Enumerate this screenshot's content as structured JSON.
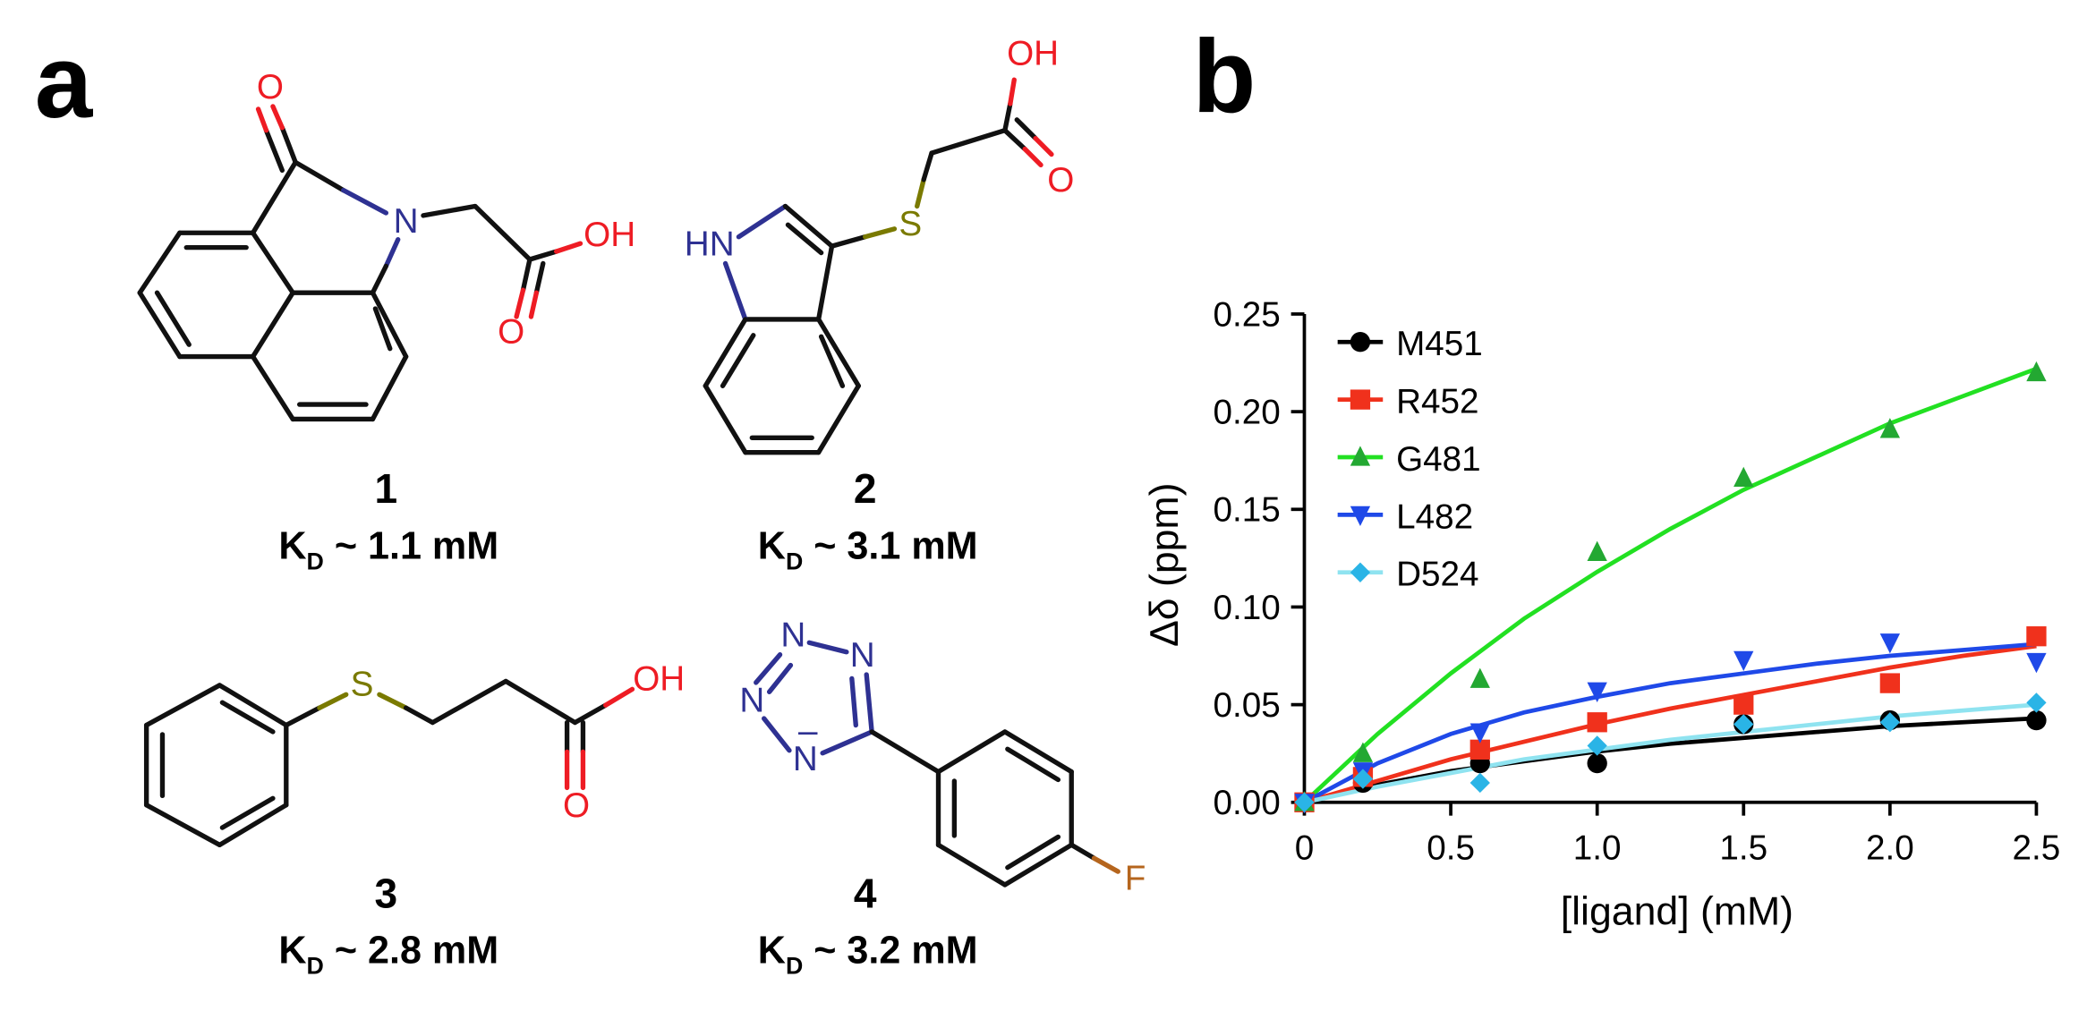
{
  "panel_labels": [
    "a",
    "b"
  ],
  "compounds": [
    {
      "number": "1",
      "kd": {
        "symbol": "K",
        "subscript": "D",
        "text": " ~ 1.1 mM"
      },
      "atoms": [
        {
          "label": "O",
          "color": "#ee1c24"
        },
        {
          "label": "N",
          "color": "#2e3192"
        },
        {
          "label": "OH",
          "color": "#ee1c24"
        },
        {
          "label": "O",
          "color": "#ee1c24"
        }
      ]
    },
    {
      "number": "2",
      "kd": {
        "symbol": "K",
        "subscript": "D",
        "text": " ~ 3.1 mM"
      },
      "atoms": [
        {
          "label": "HN",
          "color": "#2e3192"
        },
        {
          "label": "S",
          "color": "#7a7a00"
        },
        {
          "label": "OH",
          "color": "#ee1c24"
        },
        {
          "label": "O",
          "color": "#ee1c24"
        }
      ]
    },
    {
      "number": "3",
      "kd": {
        "symbol": "K",
        "subscript": "D",
        "text": " ~ 2.8 mM"
      },
      "atoms": [
        {
          "label": "S",
          "color": "#7a7a00"
        },
        {
          "label": "OH",
          "color": "#ee1c24"
        },
        {
          "label": "O",
          "color": "#ee1c24"
        }
      ]
    },
    {
      "number": "4",
      "kd": {
        "symbol": "K",
        "subscript": "D",
        "text": " ~ 3.2 mM"
      },
      "atoms": [
        {
          "label": "N",
          "color": "#2e3192"
        },
        {
          "label": "N",
          "color": "#2e3192"
        },
        {
          "label": "N",
          "color": "#2e3192"
        },
        {
          "label": "N",
          "color": "#2e3192"
        },
        {
          "label": "–",
          "color": "#2e3192"
        },
        {
          "label": "F",
          "color": "#b5651d"
        }
      ]
    }
  ],
  "chart_data": {
    "type": "scatter",
    "x_label": "[ligand] (mM)",
    "y_label": "Δδ (ppm)",
    "xlim": [
      0,
      2.5
    ],
    "ylim": [
      0,
      0.25
    ],
    "xticks": [
      0,
      0.5,
      {
        "value": 1,
        "label": "1.0"
      },
      1.5,
      {
        "value": 2,
        "label": "2.0"
      },
      2.5
    ],
    "yticks": [
      {
        "value": 0,
        "label": "0.00"
      },
      {
        "value": 0.05,
        "label": "0.05"
      },
      {
        "value": 0.1,
        "label": "0.10"
      },
      {
        "value": 0.15,
        "label": "0.15"
      },
      {
        "value": 0.2,
        "label": "0.20"
      },
      {
        "value": 0.25,
        "label": "0.25"
      }
    ],
    "legend": "top-left",
    "x": [
      0,
      0.2,
      0.6,
      1.0,
      1.5,
      2.0,
      2.5
    ],
    "fit_x": [
      0,
      0.25,
      0.5,
      0.75,
      1.0,
      1.25,
      1.5,
      1.75,
      2.0,
      2.25,
      2.5
    ],
    "series": [
      {
        "name": "M451",
        "color": "#000000",
        "fit_color": "#000000",
        "marker": "circle",
        "values": [
          0,
          0.01,
          0.02,
          0.02,
          0.04,
          0.042,
          0.042
        ],
        "fit": [
          0,
          0.009,
          0.016,
          0.021,
          0.026,
          0.03,
          0.033,
          0.036,
          0.039,
          0.041,
          0.043
        ]
      },
      {
        "name": "R452",
        "color": "#f0311c",
        "fit_color": "#f0311c",
        "marker": "square",
        "values": [
          0,
          0.013,
          0.027,
          0.041,
          0.05,
          0.061,
          0.085
        ],
        "fit": [
          0,
          0.011,
          0.022,
          0.031,
          0.04,
          0.048,
          0.055,
          0.062,
          0.069,
          0.075,
          0.08
        ]
      },
      {
        "name": "G481",
        "color": "#23a832",
        "fit_color": "#22e022",
        "marker": "triangle-up",
        "values": [
          0,
          0.025,
          0.063,
          0.128,
          0.166,
          0.191,
          0.22
        ],
        "fit": [
          0,
          0.035,
          0.066,
          0.094,
          0.118,
          0.14,
          0.16,
          0.177,
          0.194,
          0.208,
          0.222
        ]
      },
      {
        "name": "L482",
        "color": "#1f49e8",
        "fit_color": "#1f49e8",
        "marker": "triangle-down",
        "values": [
          0,
          0.016,
          0.036,
          0.057,
          0.073,
          0.082,
          0.072
        ],
        "fit": [
          0,
          0.02,
          0.035,
          0.046,
          0.054,
          0.061,
          0.066,
          0.071,
          0.075,
          0.078,
          0.081
        ]
      },
      {
        "name": "D524",
        "color": "#2ab4e6",
        "fit_color": "#8fe3f0",
        "marker": "diamond",
        "values": [
          0,
          0.012,
          0.01,
          0.029,
          0.04,
          0.041,
          0.051
        ],
        "fit": [
          0,
          0.008,
          0.015,
          0.022,
          0.027,
          0.032,
          0.036,
          0.04,
          0.044,
          0.047,
          0.05
        ]
      }
    ]
  }
}
